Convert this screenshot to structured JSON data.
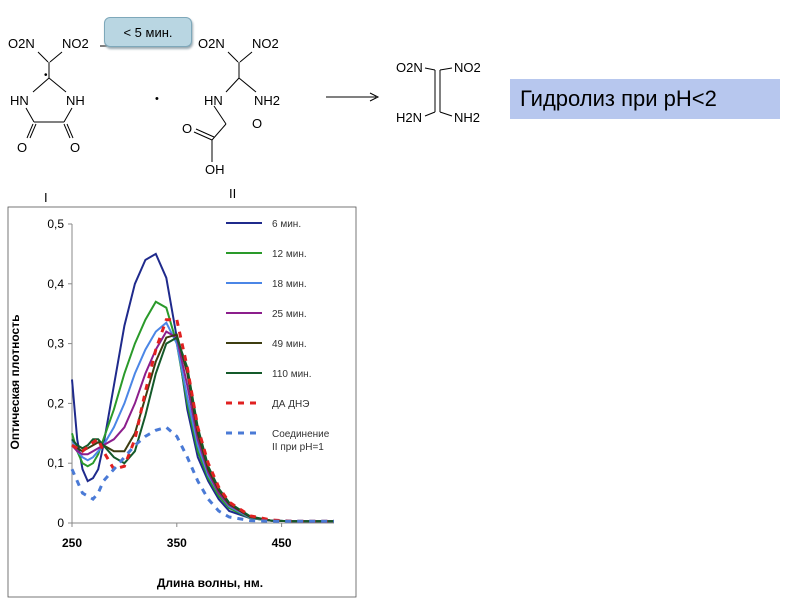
{
  "scheme": {
    "time_label": "< 5 мин.",
    "hydrolysis_label": "Гидролиз при pH<2",
    "compound_labels": [
      "I",
      "II"
    ],
    "atoms": {
      "o2n": "O2N",
      "no2": "NO2",
      "hn": "HN",
      "nh": "NH",
      "o": "O",
      "nh2": "NH2",
      "h2n": "H2N",
      "oh": "OH",
      "dot": "•"
    }
  },
  "chart_data": {
    "type": "line",
    "xlabel": "Длина волны, нм.",
    "ylabel": "Оптическая плотность",
    "xlim": [
      250,
      500
    ],
    "ylim": [
      0,
      0.5
    ],
    "xticks": [
      "250",
      "350",
      "450"
    ],
    "yticks": [
      "0",
      "0,1",
      "0,2",
      "0,3",
      "0,4",
      "0,5"
    ],
    "legend": "top-right",
    "series": [
      {
        "name": "6 мин.",
        "color": "#1f2a8c",
        "dash": false,
        "x": [
          250,
          255,
          260,
          265,
          270,
          275,
          280,
          290,
          300,
          310,
          320,
          330,
          340,
          350,
          360,
          370,
          380,
          390,
          400,
          420,
          440,
          460,
          480,
          500
        ],
        "y": [
          0.24,
          0.14,
          0.09,
          0.07,
          0.075,
          0.09,
          0.13,
          0.23,
          0.33,
          0.4,
          0.44,
          0.45,
          0.41,
          0.31,
          0.19,
          0.11,
          0.07,
          0.04,
          0.02,
          0.008,
          0.004,
          0.003,
          0.003,
          0.003
        ]
      },
      {
        "name": "12 мин.",
        "color": "#2a9a2a",
        "dash": false,
        "x": [
          250,
          255,
          260,
          265,
          270,
          275,
          280,
          290,
          300,
          310,
          320,
          330,
          340,
          350,
          360,
          370,
          380,
          390,
          400,
          420,
          440,
          460,
          480,
          500
        ],
        "y": [
          0.15,
          0.12,
          0.1,
          0.095,
          0.1,
          0.115,
          0.14,
          0.19,
          0.25,
          0.3,
          0.34,
          0.37,
          0.36,
          0.3,
          0.2,
          0.12,
          0.075,
          0.045,
          0.025,
          0.008,
          0.004,
          0.003,
          0.003,
          0.003
        ]
      },
      {
        "name": "18 мин.",
        "color": "#4b86e6",
        "dash": false,
        "x": [
          250,
          255,
          260,
          265,
          270,
          275,
          280,
          290,
          300,
          310,
          320,
          330,
          340,
          350,
          360,
          370,
          380,
          390,
          400,
          420,
          440,
          460,
          480,
          500
        ],
        "y": [
          0.14,
          0.12,
          0.11,
          0.105,
          0.11,
          0.12,
          0.13,
          0.16,
          0.2,
          0.25,
          0.29,
          0.32,
          0.335,
          0.3,
          0.21,
          0.13,
          0.08,
          0.05,
          0.028,
          0.009,
          0.004,
          0.003,
          0.003,
          0.003
        ]
      },
      {
        "name": "25 мин.",
        "color": "#8c1e8c",
        "dash": false,
        "x": [
          250,
          255,
          260,
          265,
          270,
          275,
          280,
          290,
          300,
          310,
          320,
          330,
          340,
          350,
          360,
          370,
          380,
          390,
          400,
          420,
          440,
          460,
          480,
          500
        ],
        "y": [
          0.13,
          0.12,
          0.115,
          0.115,
          0.12,
          0.125,
          0.13,
          0.14,
          0.16,
          0.2,
          0.25,
          0.29,
          0.32,
          0.31,
          0.23,
          0.14,
          0.085,
          0.05,
          0.03,
          0.01,
          0.004,
          0.003,
          0.003,
          0.003
        ]
      },
      {
        "name": "49 мин.",
        "color": "#3d3d10",
        "dash": false,
        "x": [
          250,
          255,
          260,
          265,
          270,
          275,
          280,
          290,
          300,
          310,
          320,
          330,
          340,
          350,
          360,
          370,
          380,
          390,
          400,
          420,
          440,
          460,
          480,
          500
        ],
        "y": [
          0.13,
          0.125,
          0.12,
          0.125,
          0.13,
          0.135,
          0.13,
          0.12,
          0.12,
          0.15,
          0.21,
          0.27,
          0.31,
          0.315,
          0.25,
          0.15,
          0.09,
          0.055,
          0.032,
          0.01,
          0.004,
          0.003,
          0.003,
          0.003
        ]
      },
      {
        "name": "110 мин.",
        "color": "#145a2a",
        "dash": false,
        "x": [
          250,
          255,
          260,
          265,
          270,
          275,
          280,
          290,
          300,
          310,
          320,
          330,
          340,
          350,
          360,
          370,
          380,
          390,
          400,
          420,
          440,
          460,
          480,
          500
        ],
        "y": [
          0.14,
          0.13,
          0.125,
          0.13,
          0.14,
          0.14,
          0.13,
          0.11,
          0.1,
          0.12,
          0.18,
          0.25,
          0.3,
          0.31,
          0.26,
          0.16,
          0.095,
          0.058,
          0.034,
          0.011,
          0.004,
          0.003,
          0.003,
          0.003
        ]
      },
      {
        "name": "ДА ДНЭ",
        "color": "#e02020",
        "dash": true,
        "x": [
          250,
          260,
          270,
          275,
          280,
          290,
          300,
          310,
          320,
          330,
          340,
          350,
          360,
          370,
          380,
          390,
          400,
          420,
          440,
          460,
          480,
          500
        ],
        "y": [
          0.13,
          0.12,
          0.135,
          0.14,
          0.12,
          0.09,
          0.095,
          0.14,
          0.22,
          0.29,
          0.34,
          0.34,
          0.26,
          0.16,
          0.1,
          0.06,
          0.035,
          0.012,
          0.005,
          0.003,
          0.003,
          0.003
        ]
      },
      {
        "name": "Соединение II при pH=1",
        "color": "#4a7ad6",
        "dash": true,
        "x": [
          250,
          260,
          270,
          275,
          280,
          290,
          300,
          310,
          320,
          330,
          340,
          350,
          360,
          370,
          380,
          390,
          400,
          420,
          440,
          460,
          480,
          500
        ],
        "y": [
          0.09,
          0.05,
          0.04,
          0.05,
          0.07,
          0.09,
          0.11,
          0.13,
          0.145,
          0.155,
          0.16,
          0.145,
          0.11,
          0.07,
          0.04,
          0.02,
          0.01,
          0.004,
          0.003,
          0.003,
          0.003,
          0.003
        ]
      }
    ]
  }
}
